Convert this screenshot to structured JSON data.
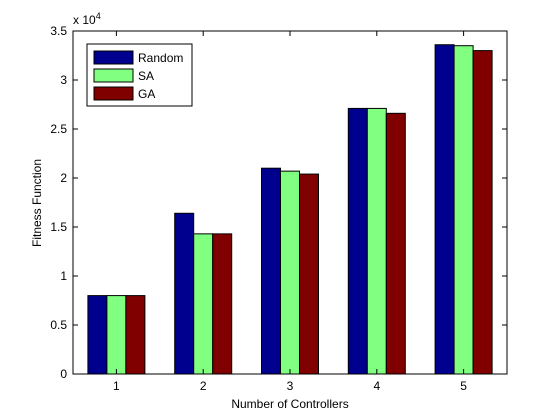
{
  "chart_data": {
    "type": "bar",
    "title": "",
    "xlabel": "Number of Controllers",
    "ylabel": "Fitness Function",
    "y_multiplier_label": "x 10",
    "y_multiplier_exponent": "4",
    "categories": [
      "1",
      "2",
      "3",
      "4",
      "5"
    ],
    "ylim": [
      0,
      3.5
    ],
    "yticks": [
      0,
      0.5,
      1,
      1.5,
      2,
      2.5,
      3,
      3.5
    ],
    "ytick_labels": [
      "0",
      "0.5",
      "1",
      "1.5",
      "2",
      "2.5",
      "3",
      "3.5"
    ],
    "grid": false,
    "legend_position": "top-left",
    "series": [
      {
        "name": "Random",
        "color": "#00008f",
        "values": [
          0.8,
          1.64,
          2.1,
          2.71,
          3.36
        ]
      },
      {
        "name": "SA",
        "color": "#80ff80",
        "values": [
          0.8,
          1.43,
          2.07,
          2.71,
          3.35
        ]
      },
      {
        "name": "GA",
        "color": "#800000",
        "values": [
          0.8,
          1.43,
          2.04,
          2.66,
          3.3
        ]
      }
    ]
  }
}
